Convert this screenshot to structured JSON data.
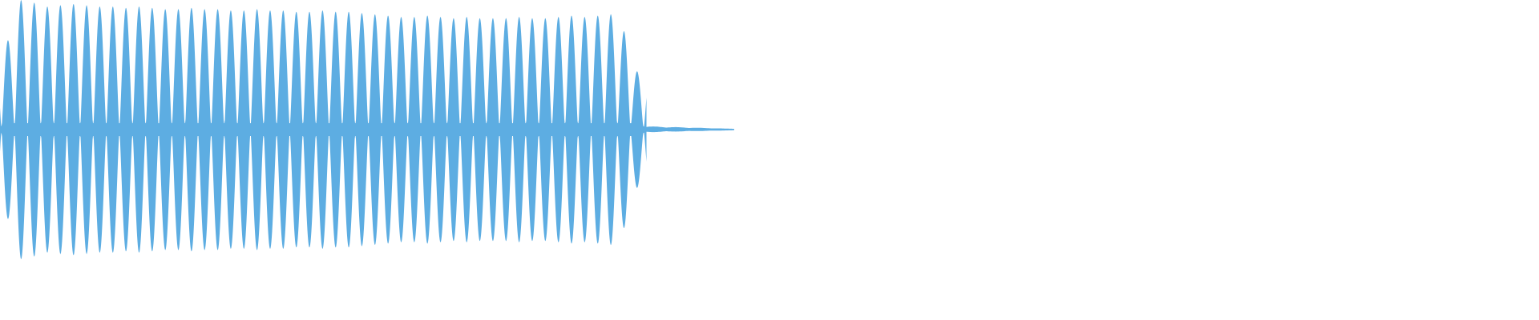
{
  "waveform": {
    "color": "#5dade2",
    "background": "#ffffff",
    "lobe_amplitudes": [
      0.69,
      1.0,
      0.98,
      0.95,
      0.96,
      0.97,
      0.96,
      0.95,
      0.95,
      0.94,
      0.95,
      0.94,
      0.93,
      0.93,
      0.94,
      0.93,
      0.93,
      0.92,
      0.92,
      0.93,
      0.92,
      0.92,
      0.91,
      0.91,
      0.92,
      0.91,
      0.91,
      0.9,
      0.89,
      0.88,
      0.87,
      0.87,
      0.88,
      0.87,
      0.86,
      0.87,
      0.86,
      0.86,
      0.86,
      0.87,
      0.86,
      0.86,
      0.87,
      0.88,
      0.87,
      0.88,
      0.89,
      0.76,
      0.45
    ],
    "tail_amplitude": 0.02
  }
}
